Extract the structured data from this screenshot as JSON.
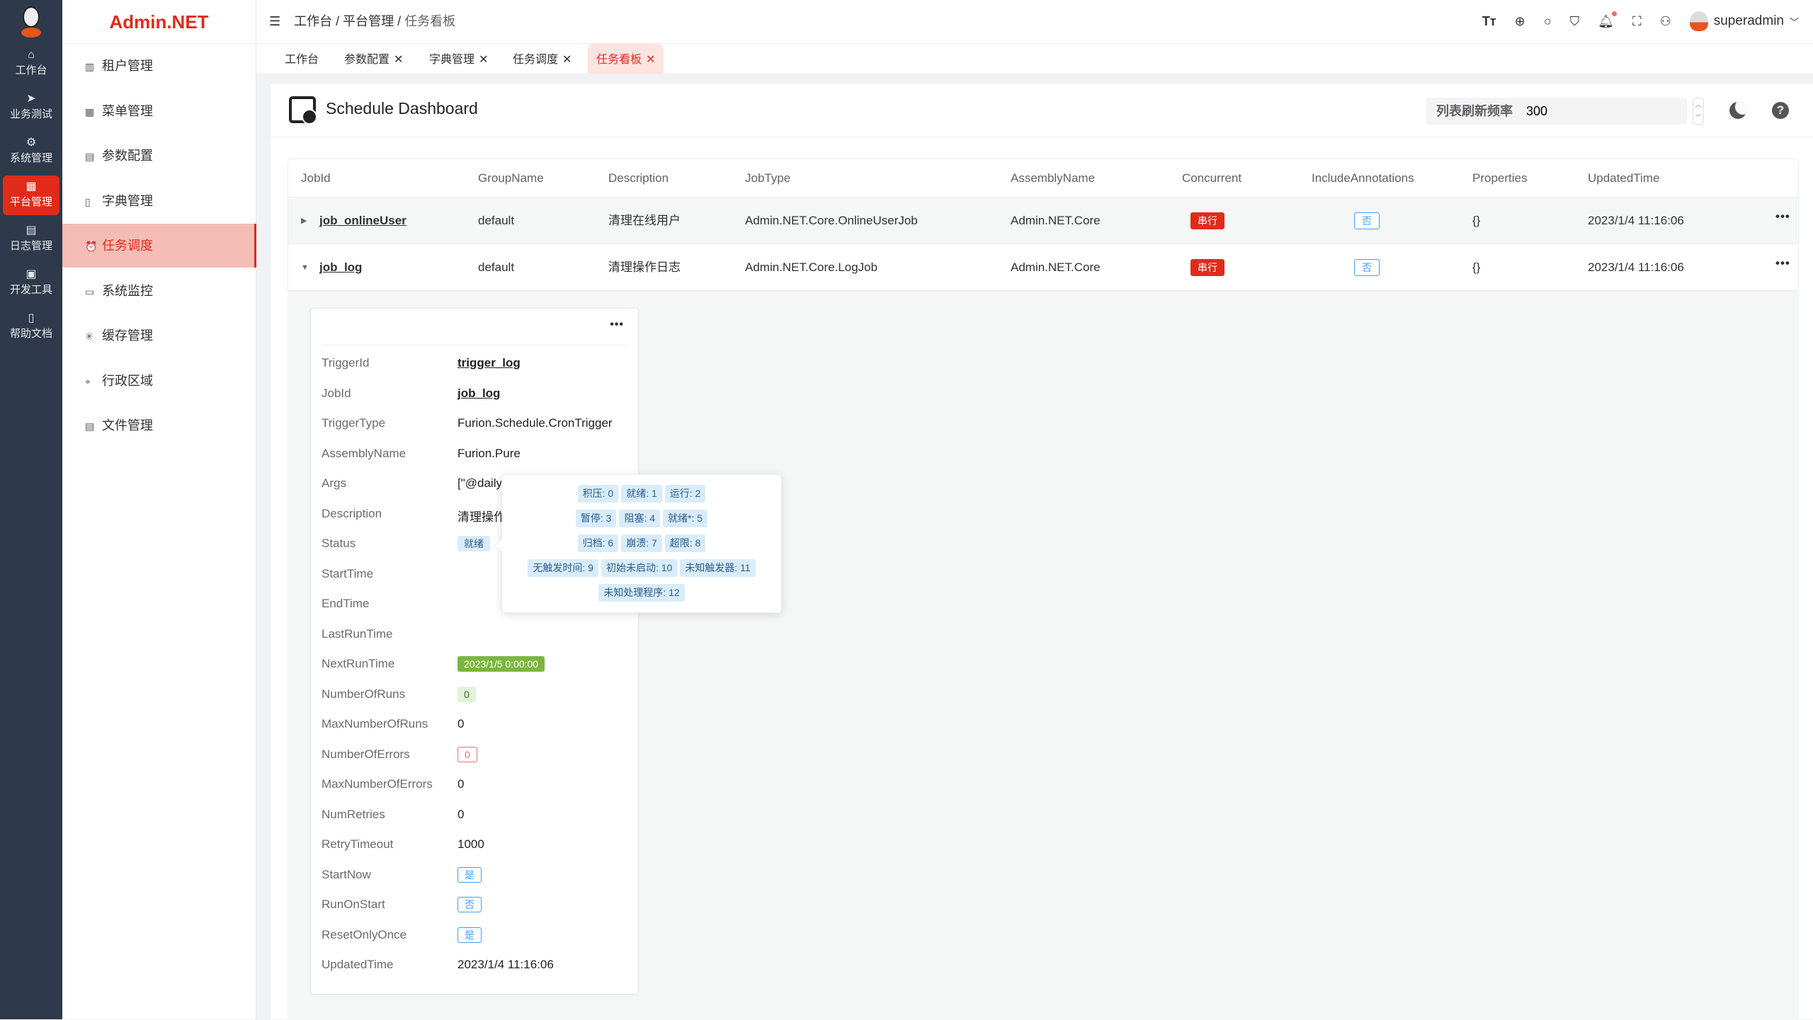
{
  "rail": {
    "items": [
      {
        "label": "工作台",
        "icon": "home-icon"
      },
      {
        "label": "业务测试",
        "icon": "send-icon"
      },
      {
        "label": "系统管理",
        "icon": "gear-icon"
      },
      {
        "label": "平台管理",
        "icon": "grid-icon",
        "active": true
      },
      {
        "label": "日志管理",
        "icon": "document-icon"
      },
      {
        "label": "开发工具",
        "icon": "chip-icon"
      },
      {
        "label": "帮助文档",
        "icon": "book-icon"
      }
    ]
  },
  "brand": "Admin.NET",
  "menu": {
    "items": [
      {
        "label": "租户管理",
        "icon": "building-icon"
      },
      {
        "label": "菜单管理",
        "icon": "grid-icon"
      },
      {
        "label": "参数配置",
        "icon": "document-icon"
      },
      {
        "label": "字典管理",
        "icon": "book-icon"
      },
      {
        "label": "任务调度",
        "icon": "alarm-icon",
        "active": true
      },
      {
        "label": "系统监控",
        "icon": "monitor-icon"
      },
      {
        "label": "缓存管理",
        "icon": "sparkle-icon"
      },
      {
        "label": "行政区域",
        "icon": "location-icon"
      },
      {
        "label": "文件管理",
        "icon": "file-icon"
      }
    ]
  },
  "breadcrumb": [
    "工作台",
    "平台管理",
    "任务看板"
  ],
  "user": {
    "name": "superadmin"
  },
  "tabs": [
    {
      "label": "工作台",
      "closable": false
    },
    {
      "label": "参数配置",
      "closable": true
    },
    {
      "label": "字典管理",
      "closable": true
    },
    {
      "label": "任务调度",
      "closable": true
    },
    {
      "label": "任务看板",
      "closable": true,
      "active": true
    }
  ],
  "page": {
    "title": "Schedule Dashboard",
    "refresh_label": "列表刷新频率",
    "refresh_value": "300"
  },
  "table": {
    "columns": [
      "JobId",
      "GroupName",
      "Description",
      "JobType",
      "AssemblyName",
      "Concurrent",
      "IncludeAnnotations",
      "Properties",
      "UpdatedTime"
    ],
    "rows": [
      {
        "jobId": "job_onlineUser",
        "group": "default",
        "description": "清理在线用户",
        "jobType": "Admin.NET.Core.OnlineUserJob",
        "assembly": "Admin.NET.Core",
        "concurrent": "串行",
        "include": "否",
        "properties": "{}",
        "updated": "2023/1/4 11:16:06",
        "expanded": false
      },
      {
        "jobId": "job_log",
        "group": "default",
        "description": "清理操作日志",
        "jobType": "Admin.NET.Core.LogJob",
        "assembly": "Admin.NET.Core",
        "concurrent": "串行",
        "include": "否",
        "properties": "{}",
        "updated": "2023/1/4 11:16:06",
        "expanded": true
      }
    ]
  },
  "trigger": [
    {
      "label": "TriggerId",
      "value": "trigger_log",
      "kind": "link"
    },
    {
      "label": "JobId",
      "value": "job_log",
      "kind": "link"
    },
    {
      "label": "TriggerType",
      "value": "Furion.Schedule.CronTrigger",
      "kind": "text"
    },
    {
      "label": "AssemblyName",
      "value": "Furion.Pure",
      "kind": "text"
    },
    {
      "label": "Args",
      "value": "[\"@daily",
      "kind": "text"
    },
    {
      "label": "Description",
      "value": "清理操作",
      "kind": "text"
    },
    {
      "label": "Status",
      "value": "就绪",
      "kind": "tag",
      "tag": "info"
    },
    {
      "label": "StartTime",
      "value": "",
      "kind": "text"
    },
    {
      "label": "EndTime",
      "value": "",
      "kind": "text"
    },
    {
      "label": "LastRunTime",
      "value": "",
      "kind": "text"
    },
    {
      "label": "NextRunTime",
      "value": "2023/1/5 0:00:00",
      "kind": "tag",
      "tag": "success-solid"
    },
    {
      "label": "NumberOfRuns",
      "value": "0",
      "kind": "tag",
      "tag": "success-light"
    },
    {
      "label": "MaxNumberOfRuns",
      "value": "0",
      "kind": "text"
    },
    {
      "label": "NumberOfErrors",
      "value": "0",
      "kind": "tag",
      "tag": "danger-plain"
    },
    {
      "label": "MaxNumberOfErrors",
      "value": "0",
      "kind": "text"
    },
    {
      "label": "NumRetries",
      "value": "0",
      "kind": "text"
    },
    {
      "label": "RetryTimeout",
      "value": "1000",
      "kind": "text"
    },
    {
      "label": "StartNow",
      "value": "是",
      "kind": "tag",
      "tag": "primary-plain"
    },
    {
      "label": "RunOnStart",
      "value": "否",
      "kind": "tag",
      "tag": "primary-plain"
    },
    {
      "label": "ResetOnlyOnce",
      "value": "是",
      "kind": "tag",
      "tag": "primary-plain"
    },
    {
      "label": "UpdatedTime",
      "value": "2023/1/4 11:16:06",
      "kind": "text"
    }
  ],
  "status_popover": [
    [
      "积压: 0",
      "就绪: 1",
      "运行: 2"
    ],
    [
      "暂停: 3",
      "阻塞: 4",
      "就绪*: 5"
    ],
    [
      "归档: 6",
      "崩溃: 7",
      "超限: 8"
    ],
    [
      "无触发时间: 9",
      "初始未启动: 10",
      "未知触发器: 11"
    ],
    [
      "未知处理程序: 12"
    ]
  ],
  "colors": {
    "accent": "#e02b1a",
    "rail": "#2e3a4b",
    "primary": "#409eff",
    "success": "#7cb63f"
  }
}
